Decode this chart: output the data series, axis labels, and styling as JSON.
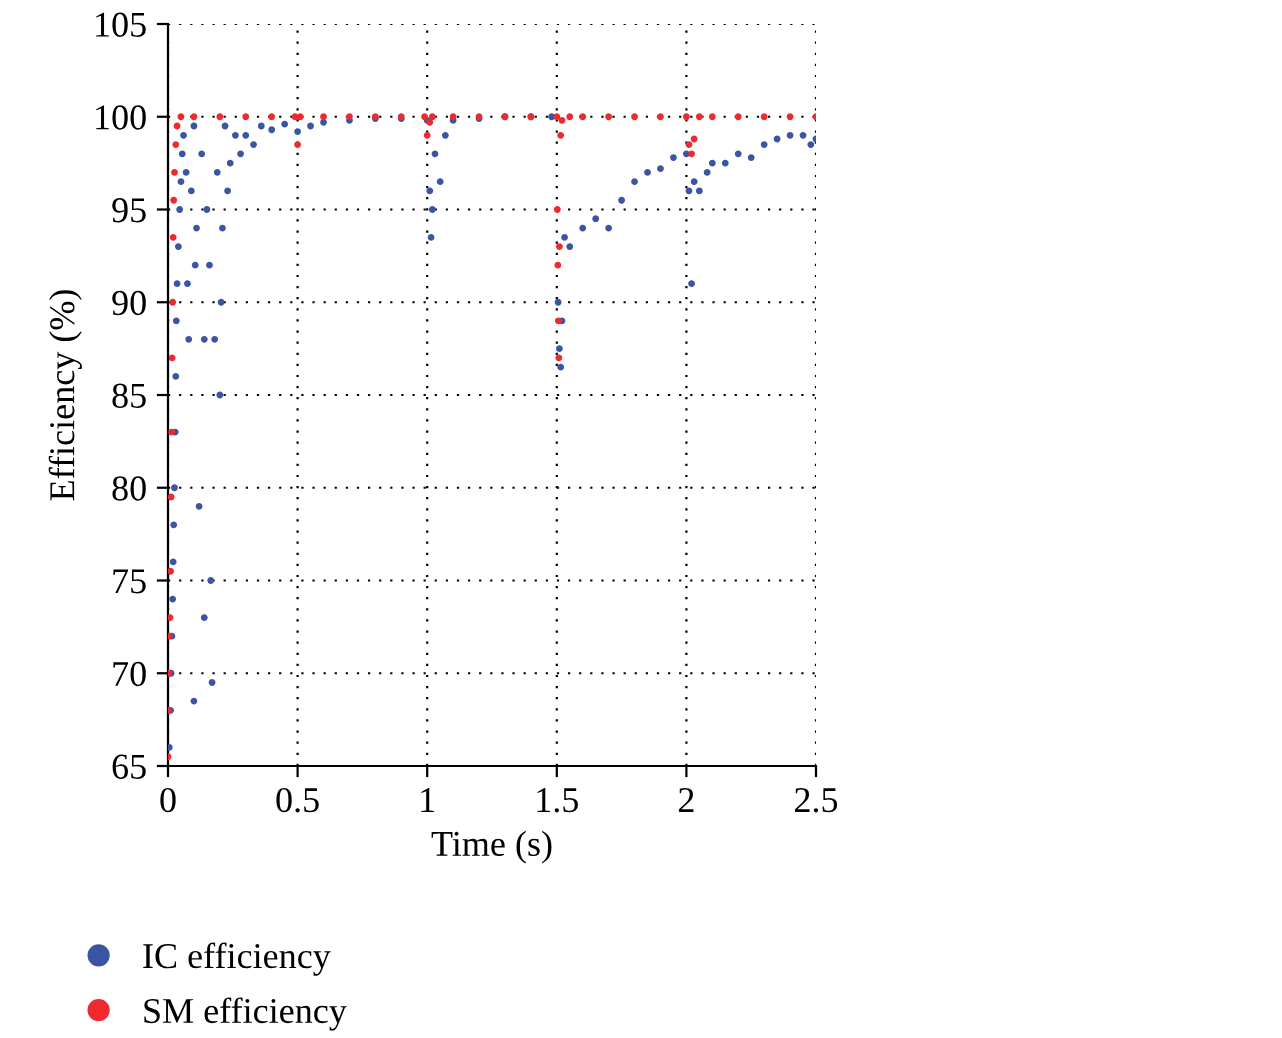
{
  "chart_data": {
    "type": "scatter",
    "xlabel": "Time (s)",
    "ylabel": "Efficiency (%)",
    "xlim": [
      0,
      2.5
    ],
    "ylim": [
      65,
      105
    ],
    "xticks": [
      0,
      0.5,
      1,
      1.5,
      2,
      2.5
    ],
    "yticks": [
      65,
      70,
      75,
      80,
      85,
      90,
      95,
      100,
      105
    ],
    "grid": true,
    "legend": "bottom",
    "marker": "circle",
    "series": [
      {
        "name": "IC efficiency",
        "color": "#3a55a4",
        "x": [
          0.005,
          0.01,
          0.012,
          0.015,
          0.018,
          0.02,
          0.022,
          0.025,
          0.028,
          0.03,
          0.032,
          0.035,
          0.04,
          0.045,
          0.05,
          0.055,
          0.06,
          0.07,
          0.075,
          0.08,
          0.09,
          0.1,
          0.1,
          0.105,
          0.11,
          0.12,
          0.13,
          0.14,
          0.14,
          0.15,
          0.16,
          0.165,
          0.17,
          0.18,
          0.19,
          0.2,
          0.205,
          0.21,
          0.22,
          0.23,
          0.24,
          0.26,
          0.28,
          0.3,
          0.33,
          0.36,
          0.4,
          0.45,
          0.5,
          0.55,
          0.6,
          0.7,
          0.8,
          0.9,
          1.0,
          1.01,
          1.015,
          1.02,
          1.03,
          1.05,
          1.07,
          1.1,
          1.2,
          1.3,
          1.4,
          1.48,
          1.505,
          1.51,
          1.515,
          1.52,
          1.53,
          1.55,
          1.6,
          1.65,
          1.7,
          1.75,
          1.8,
          1.85,
          1.9,
          1.95,
          2.0,
          2.01,
          2.02,
          2.03,
          2.05,
          2.08,
          2.1,
          2.15,
          2.2,
          2.25,
          2.3,
          2.35,
          2.4,
          2.45,
          2.48,
          2.5
        ],
        "values": [
          66,
          68,
          70,
          72,
          74,
          76,
          78,
          80,
          83,
          86,
          89,
          91,
          93,
          95,
          96.5,
          98,
          99,
          97,
          91,
          88,
          96,
          99.5,
          68.5,
          92,
          94,
          79,
          98,
          73,
          88,
          95,
          92,
          75,
          69.5,
          88,
          97,
          85,
          90,
          94,
          99.5,
          96,
          97.5,
          99,
          98,
          99,
          98.5,
          99.5,
          99.3,
          99.6,
          99.2,
          99.5,
          99.7,
          99.8,
          99.9,
          99.9,
          99.8,
          96,
          93.5,
          95,
          98,
          96.5,
          99,
          99.8,
          99.9,
          100,
          100,
          100,
          90,
          87.5,
          86.5,
          89,
          93.5,
          93,
          94,
          94.5,
          94,
          95.5,
          96.5,
          97,
          97.2,
          97.8,
          98,
          96,
          91,
          96.5,
          96,
          97,
          97.5,
          97.5,
          98,
          97.8,
          98.5,
          98.8,
          99,
          99,
          98.5,
          98.8
        ]
      },
      {
        "name": "SM efficiency",
        "color": "#ee2a2e",
        "x": [
          0,
          0.002,
          0.004,
          0.005,
          0.008,
          0.01,
          0.012,
          0.014,
          0.016,
          0.018,
          0.02,
          0.022,
          0.025,
          0.03,
          0.035,
          0.05,
          0.1,
          0.2,
          0.3,
          0.4,
          0.49,
          0.5,
          0.51,
          0.6,
          0.7,
          0.8,
          0.9,
          0.99,
          1.0,
          1.01,
          1.02,
          1.1,
          1.2,
          1.3,
          1.4,
          1.5,
          1.502,
          1.504,
          1.506,
          1.508,
          1.51,
          1.515,
          1.52,
          1.55,
          1.6,
          1.7,
          1.8,
          1.9,
          2.0,
          2.01,
          2.02,
          2.03,
          2.05,
          2.1,
          2.2,
          2.3,
          2.4,
          2.5
        ],
        "values": [
          65.5,
          68,
          70,
          72,
          73,
          75.5,
          79.5,
          83,
          87,
          90,
          93.5,
          95.5,
          97,
          98.5,
          99.5,
          100,
          100,
          100,
          100,
          100,
          100,
          98.5,
          100,
          100,
          100,
          100,
          100,
          100,
          99,
          99.7,
          100,
          100,
          100,
          100,
          100,
          100,
          95,
          92,
          89,
          87,
          93,
          99,
          99.8,
          100,
          100,
          100,
          100,
          100,
          100,
          98.5,
          98,
          98.8,
          100,
          100,
          100,
          100,
          100,
          100
        ]
      }
    ]
  }
}
